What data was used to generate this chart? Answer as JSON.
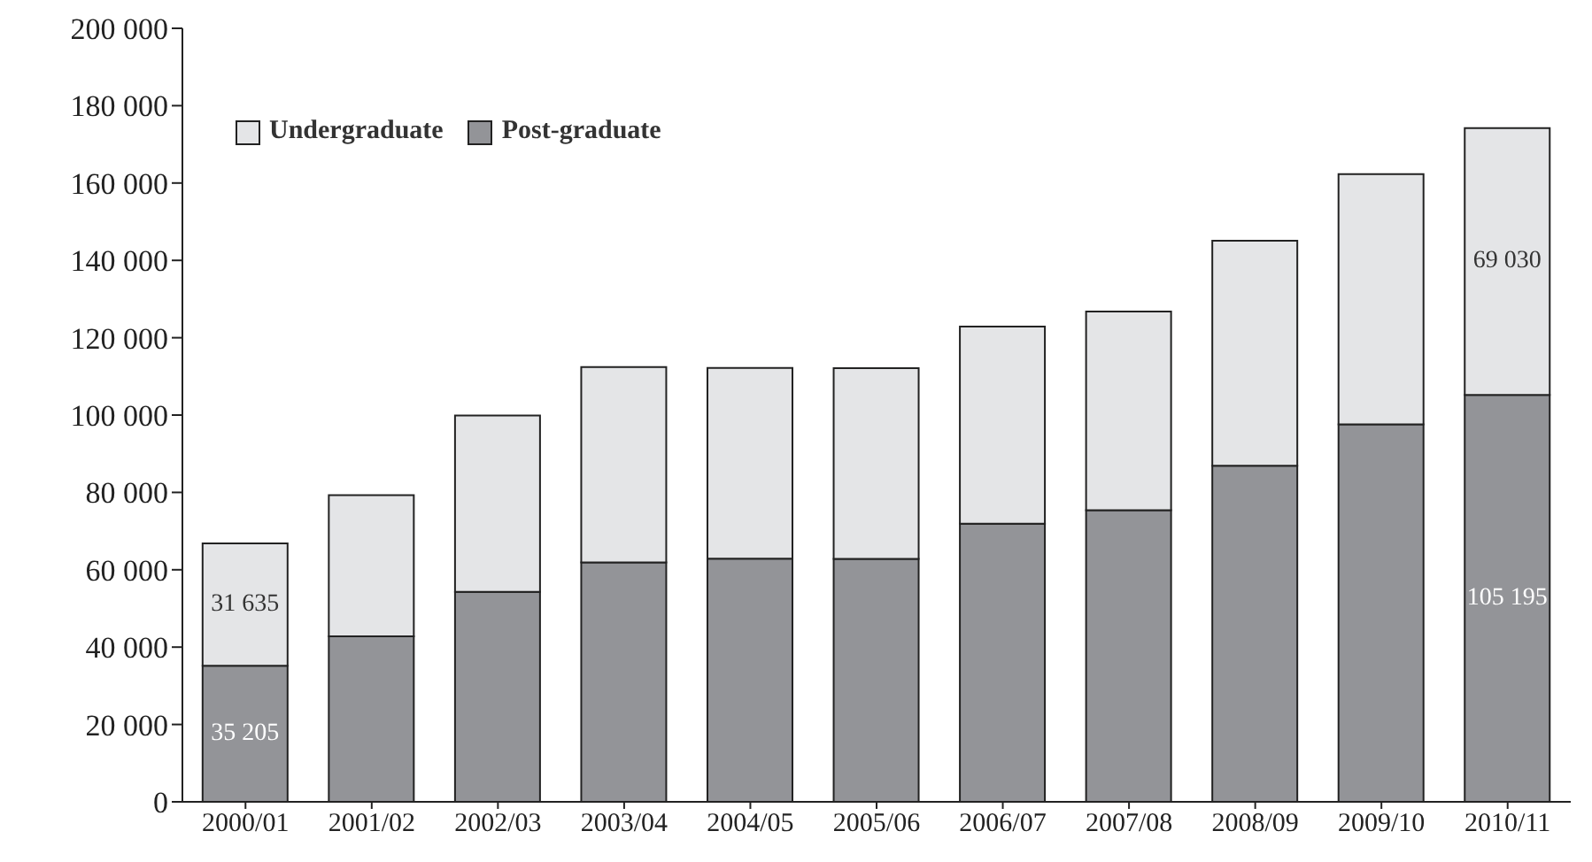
{
  "chart_data": {
    "type": "bar",
    "stacked": true,
    "categories": [
      "2000/01",
      "2001/02",
      "2002/03",
      "2003/04",
      "2004/05",
      "2005/06",
      "2006/07",
      "2007/08",
      "2008/09",
      "2009/10",
      "2010/11"
    ],
    "series": [
      {
        "name": "Post-graduate",
        "color": "#939498",
        "values": [
          35205,
          42800,
          54300,
          61900,
          62900,
          62800,
          71900,
          75400,
          86900,
          97600,
          105195
        ],
        "value_labels": [
          "35 205",
          null,
          null,
          null,
          null,
          null,
          null,
          null,
          null,
          null,
          "105 195"
        ]
      },
      {
        "name": "Undergraduate",
        "color": "#e4e5e7",
        "values": [
          31635,
          36500,
          45600,
          50500,
          49300,
          49300,
          51000,
          51400,
          58200,
          64700,
          69030
        ],
        "value_labels": [
          "31 635",
          null,
          null,
          null,
          null,
          null,
          null,
          null,
          null,
          null,
          "69 030"
        ]
      }
    ],
    "ylim": [
      0,
      200000
    ],
    "yticks": [
      0,
      {
        "value": 20000,
        "label": "20 000"
      },
      {
        "value": 40000,
        "label": "40 000"
      },
      {
        "value": 60000,
        "label": "60 000"
      },
      {
        "value": 80000,
        "label": "80 000"
      },
      {
        "value": 100000,
        "label": "100 000"
      },
      {
        "value": 120000,
        "label": "120 000"
      },
      {
        "value": 140000,
        "label": "140 000"
      },
      {
        "value": 160000,
        "label": "160 000"
      },
      {
        "value": 180000,
        "label": "180 000"
      },
      {
        "value": 200000,
        "label": "200 000"
      }
    ],
    "legend": "top left",
    "grid": false
  }
}
